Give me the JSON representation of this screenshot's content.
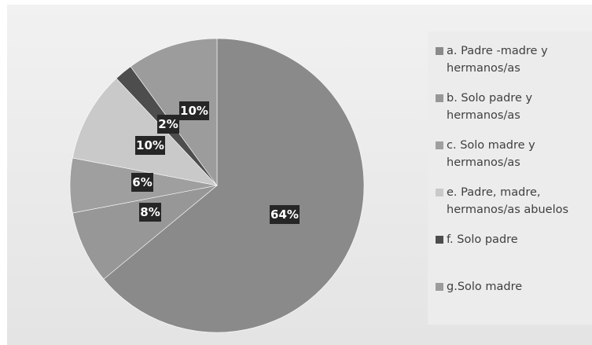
{
  "chart_data": {
    "type": "pie",
    "title": "",
    "slices": [
      {
        "label": "a. Padre -madre y hermanos/as",
        "value": 64,
        "data_label": "64%",
        "color": "#8a8a8a"
      },
      {
        "label": "b. Solo padre y hermanos/as",
        "value": 8,
        "data_label": "8%",
        "color": "#979797"
      },
      {
        "label": "c. Solo madre y hermanos/as",
        "value": 6,
        "data_label": "6%",
        "color": "#9f9f9f"
      },
      {
        "label": "e. Padre, madre, hermanos/as abuelos",
        "value": 10,
        "data_label": "10%",
        "color": "#c9c9c9"
      },
      {
        "label": "f. Solo padre",
        "value": 2,
        "data_label": "2%",
        "color": "#4d4d4d"
      },
      {
        "label": "g.Solo madre",
        "value": 10,
        "data_label": "10%",
        "color": "#9c9c9c"
      }
    ],
    "legend_position": "right"
  },
  "colors": {
    "label_box": "#262626",
    "label_text": "#ffffff",
    "legend_text": "#3f3f3f"
  }
}
